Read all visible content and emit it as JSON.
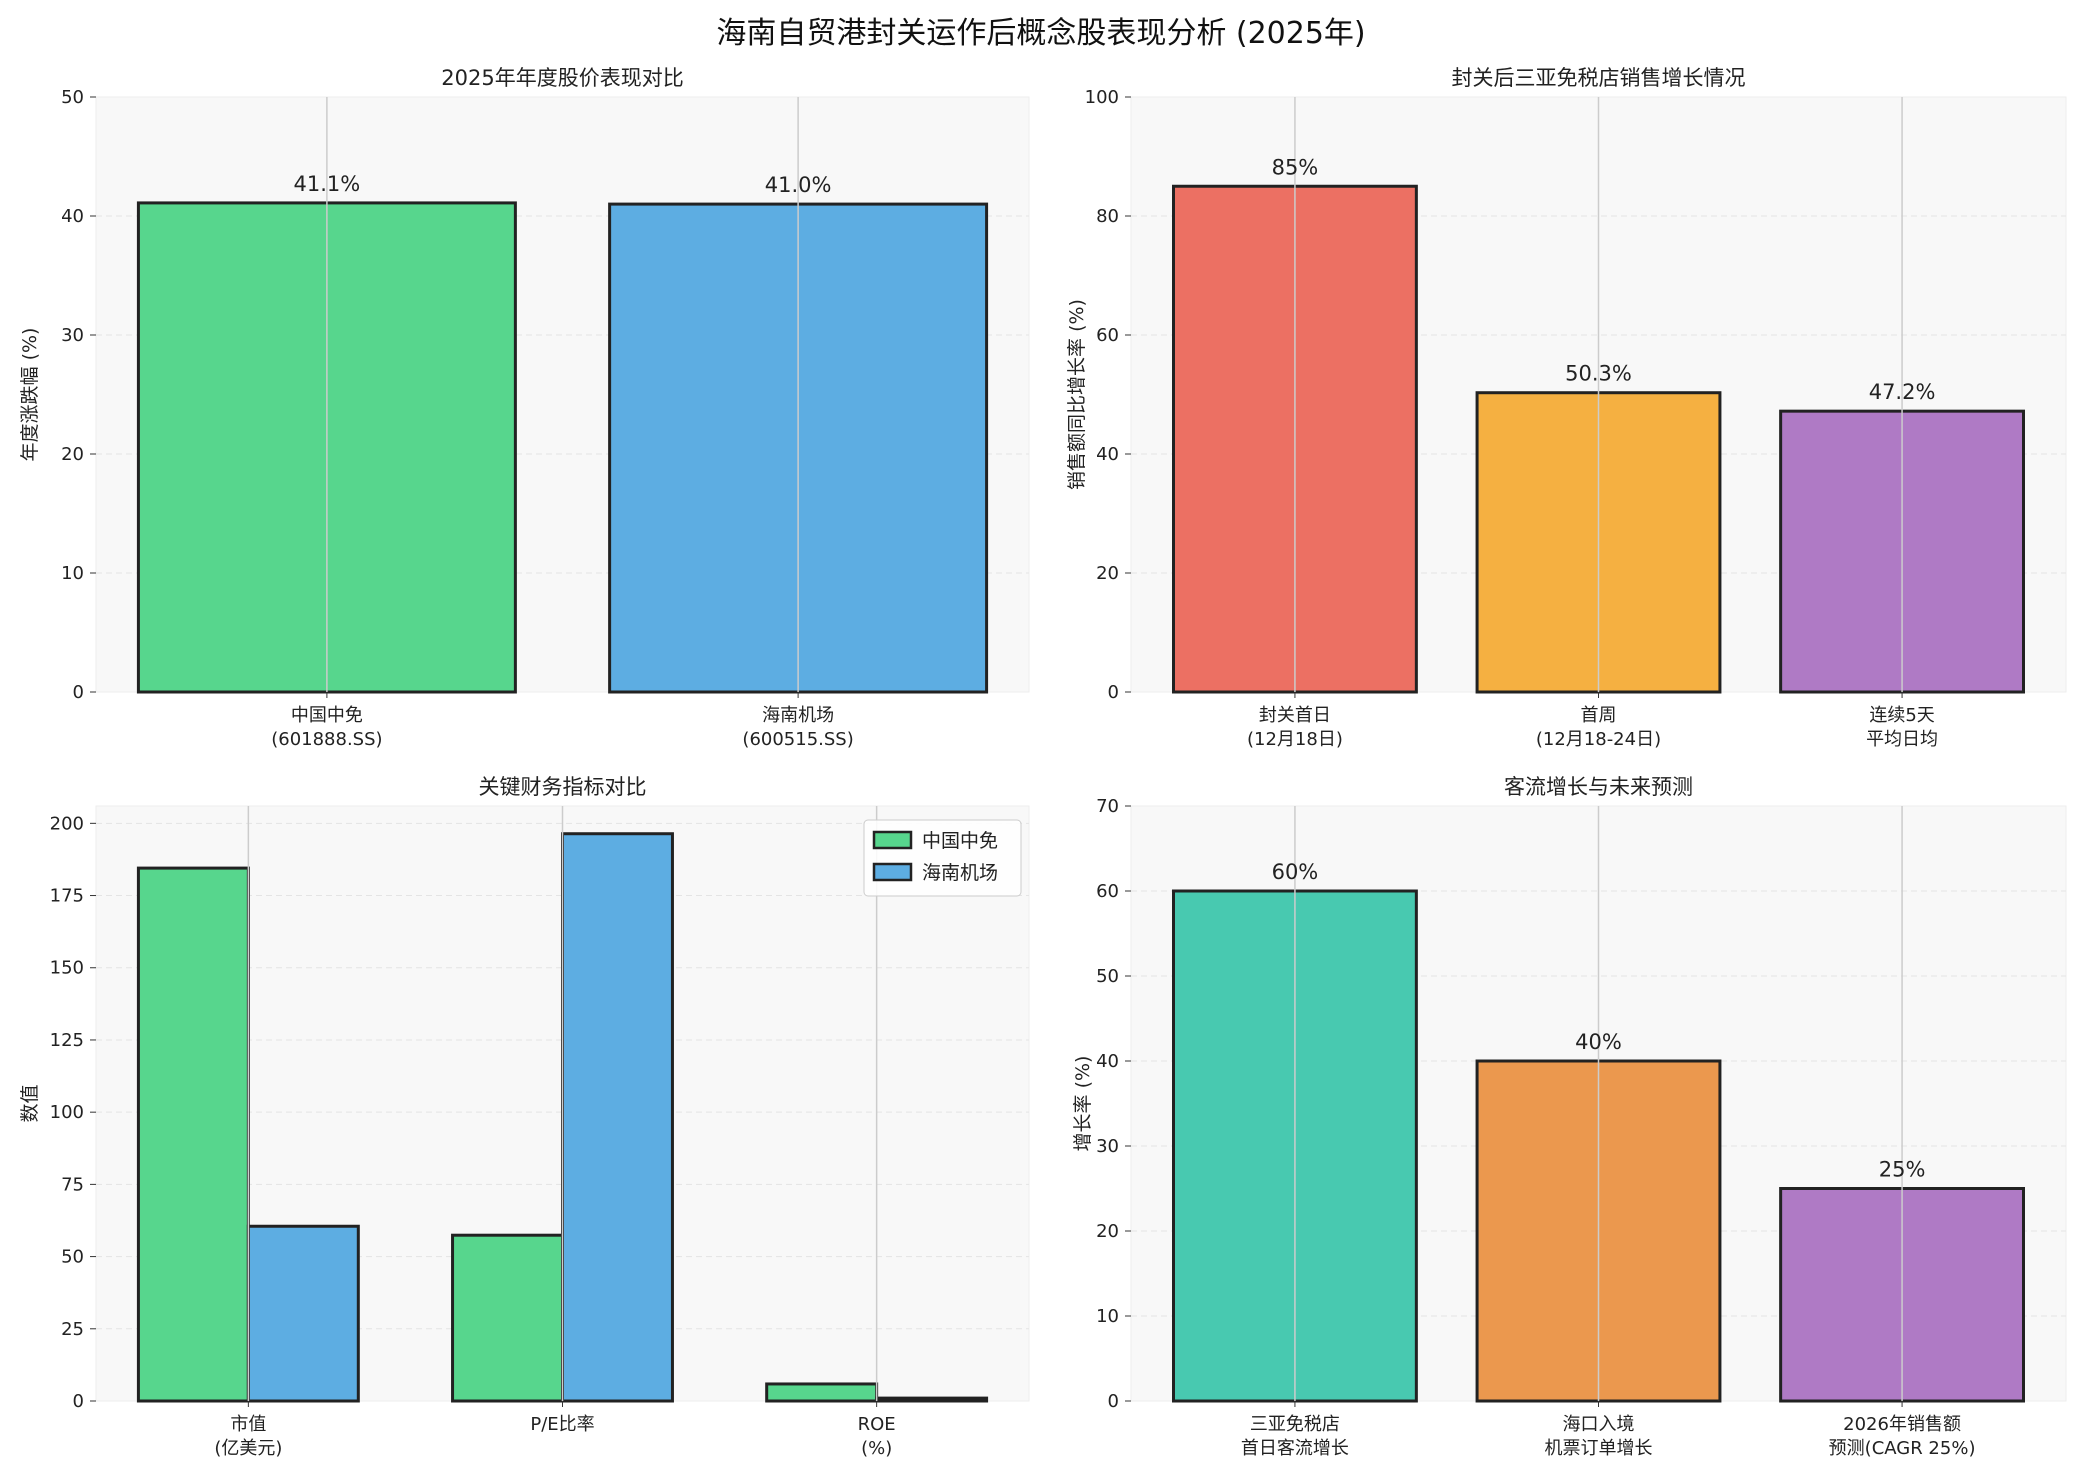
{
  "title": "海南自贸港封关运作后概念股表现分析 (2025年)",
  "colors": {
    "green": "#57d68d",
    "blue": "#5dade2",
    "red": "#ec7063",
    "orange": "#f5b041",
    "purple": "#af7ac5",
    "teal": "#48c9b0",
    "orange2": "#eb984e",
    "edge": "#222222",
    "face": "#f8f8f8"
  },
  "chart_data": [
    {
      "type": "bar",
      "title": "2025年年度股价表现对比",
      "ylabel": "年度涨跌幅 (%)",
      "xlabel": "",
      "categories": [
        "中国中免\n(601888.SS)",
        "海南机场\n(600515.SS)"
      ],
      "values": [
        41.1,
        41.0
      ],
      "labels": [
        "41.1%",
        "41.0%"
      ],
      "bar_colors": [
        "green",
        "blue"
      ],
      "ylim": [
        0,
        50
      ],
      "yticks": [
        0,
        10,
        20,
        30,
        40,
        50
      ],
      "grid": true
    },
    {
      "type": "bar",
      "title": "封关后三亚免税店销售增长情况",
      "ylabel": "销售额同比增长率 (%)",
      "xlabel": "",
      "categories": [
        "封关首日\n(12月18日)",
        "首周\n(12月18-24日)",
        "连续5天\n平均日均"
      ],
      "values": [
        85,
        50.3,
        47.2
      ],
      "labels": [
        "85%",
        "50.3%",
        "47.2%"
      ],
      "bar_colors": [
        "red",
        "orange",
        "purple"
      ],
      "ylim": [
        0,
        100
      ],
      "yticks": [
        0,
        20,
        40,
        60,
        80,
        100
      ],
      "grid": true
    },
    {
      "type": "bar",
      "title": "关键财务指标对比",
      "ylabel": "数值",
      "xlabel": "",
      "categories": [
        "市值\n(亿美元)",
        "P/E比率",
        "ROE\n(%)"
      ],
      "series": [
        {
          "name": "中国中免",
          "values": [
            184.5,
            57.4,
            5.9
          ],
          "color": "green"
        },
        {
          "name": "海南机场",
          "values": [
            60.5,
            196.4,
            1.0
          ],
          "color": "blue"
        }
      ],
      "ylim": [
        0,
        206
      ],
      "yticks": [
        0,
        25,
        50,
        75,
        100,
        125,
        150,
        175,
        200
      ],
      "legend": "top-right",
      "grid": true
    },
    {
      "type": "bar",
      "title": "客流增长与未来预测",
      "ylabel": "增长率 (%)",
      "xlabel": "",
      "categories": [
        "三亚免税店\n首日客流增长",
        "海口入境\n机票订单增长",
        "2026年销售额\n预测(CAGR 25%)"
      ],
      "values": [
        60,
        40,
        25
      ],
      "labels": [
        "60%",
        "40%",
        "25%"
      ],
      "bar_colors": [
        "teal",
        "orange2",
        "purple"
      ],
      "ylim": [
        0,
        70
      ],
      "yticks": [
        0,
        10,
        20,
        30,
        40,
        50,
        60,
        70
      ],
      "grid": true
    }
  ]
}
